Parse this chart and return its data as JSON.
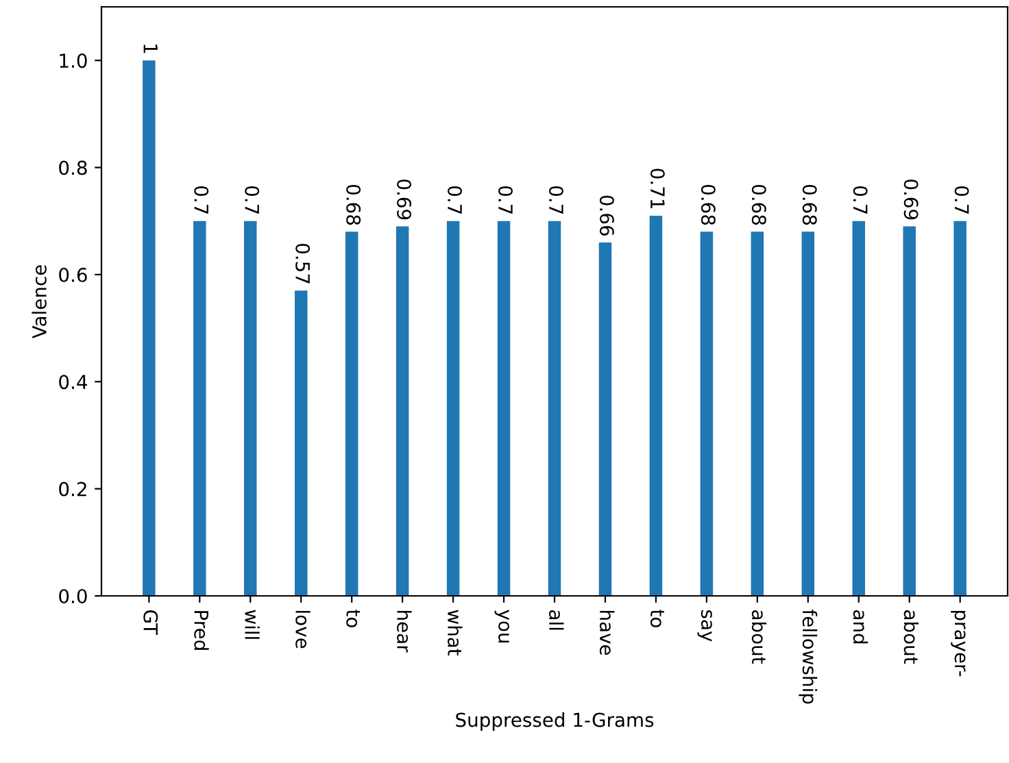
{
  "chart_data": {
    "type": "bar",
    "xlabel": "Suppressed 1-Grams",
    "ylabel": "Valence",
    "categories": [
      "GT",
      "Pred",
      "will",
      "love",
      "to",
      "hear",
      "what",
      "you",
      "all",
      "have",
      "to",
      "say",
      "about",
      "fellowship",
      "and",
      "about",
      "prayer-"
    ],
    "values": [
      1,
      0.7,
      0.7,
      0.57,
      0.68,
      0.69,
      0.7,
      0.7,
      0.7,
      0.66,
      0.71,
      0.68,
      0.68,
      0.68,
      0.7,
      0.69,
      0.7
    ],
    "color": "#1f77b4",
    "ylim": [
      0,
      1.1
    ],
    "yticks": [
      {
        "value": 0,
        "label": "0.0"
      },
      0.2,
      0.4,
      0.6,
      0.8,
      {
        "value": 1,
        "label": "1.0"
      }
    ],
    "data_labels": true,
    "grid": false,
    "legend": false
  }
}
